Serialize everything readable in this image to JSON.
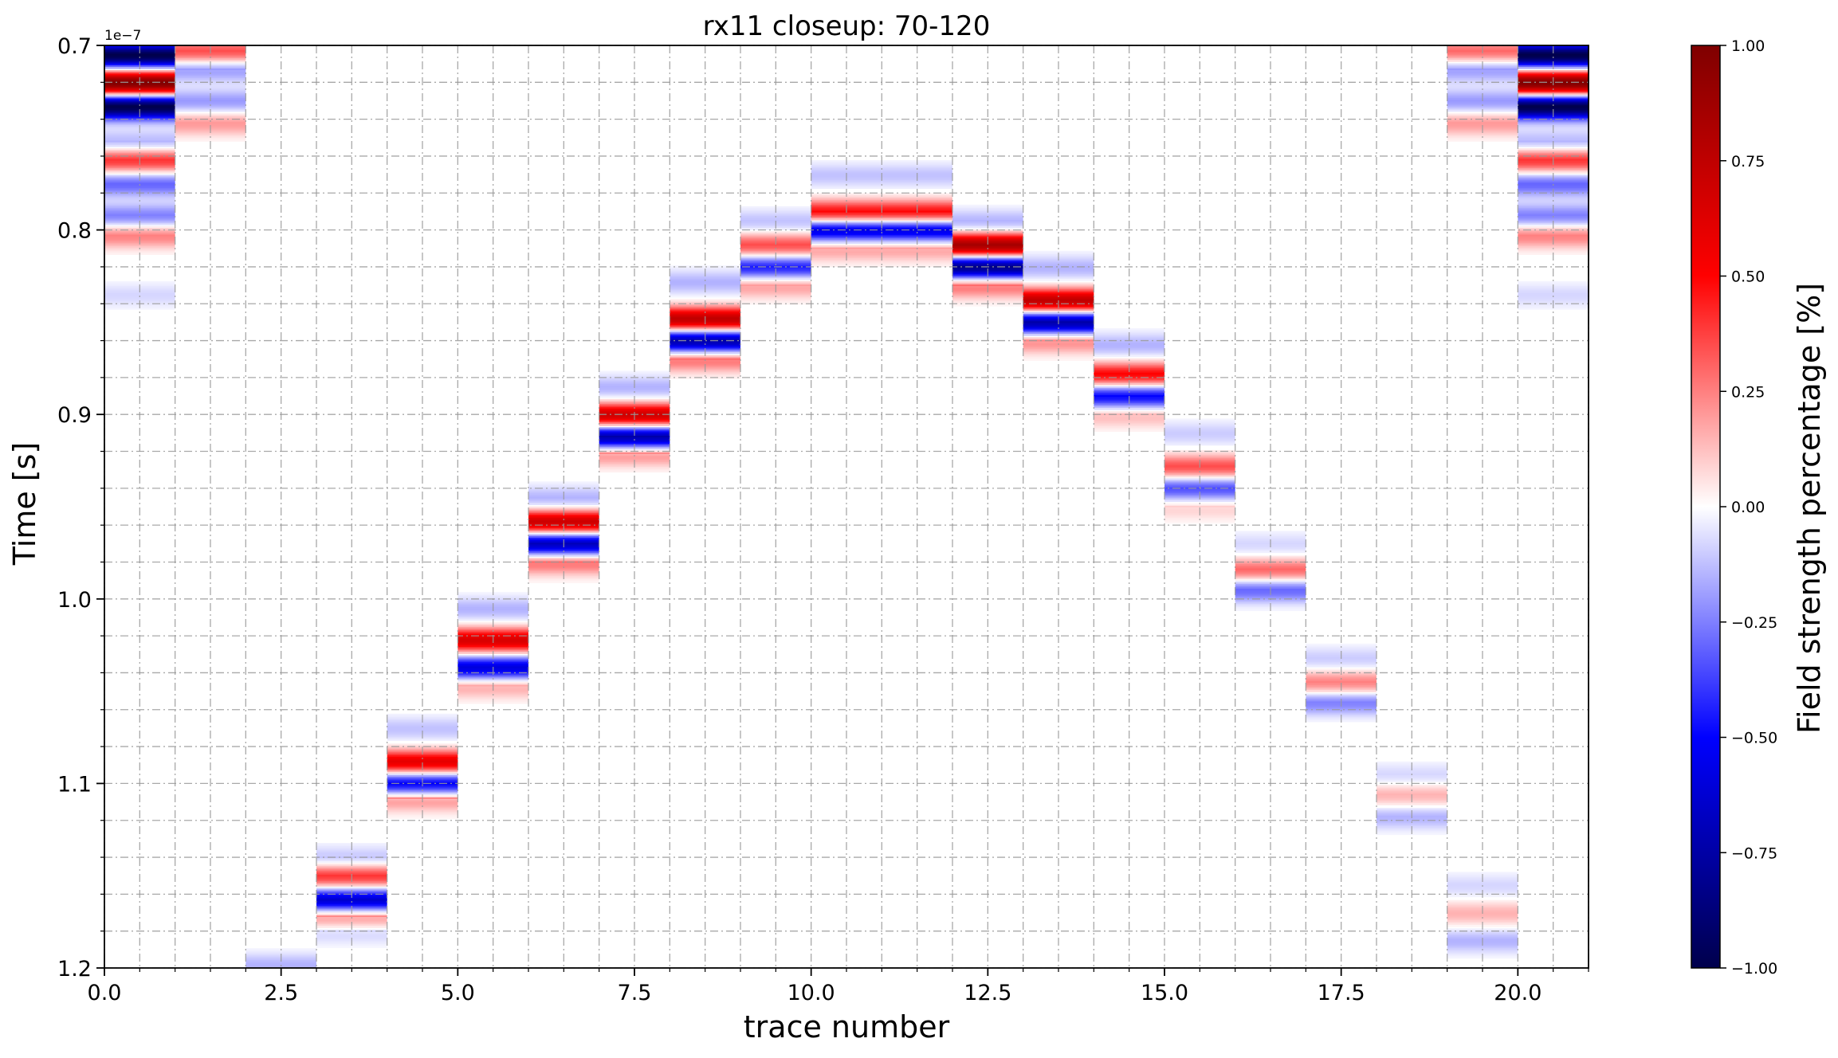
{
  "chart_data": {
    "type": "heatmap",
    "title": "rx11 closeup: 70-120",
    "xlabel": "trace number",
    "ylabel": "Time [s]",
    "y_offset_label": "1e−7",
    "xlim": [
      0.0,
      21.0
    ],
    "ylim": [
      1.2,
      0.7
    ],
    "y_scale_factor": 1e-07,
    "y_inverted": true,
    "x_ticks": [
      0.0,
      2.5,
      5.0,
      7.5,
      10.0,
      12.5,
      15.0,
      17.5,
      20.0
    ],
    "x_tick_labels": [
      "0.0",
      "2.5",
      "5.0",
      "7.5",
      "10.0",
      "12.5",
      "15.0",
      "17.5",
      "20.0"
    ],
    "y_ticks": [
      0.7,
      0.8,
      0.9,
      1.0,
      1.1,
      1.2
    ],
    "y_tick_labels": [
      "0.7",
      "0.8",
      "0.9",
      "1.0",
      "1.1",
      "1.2"
    ],
    "grid": "on",
    "colormap": "seismic",
    "colorbar": {
      "label": "Field strength percentage [%]",
      "range": [
        -1.0,
        1.0
      ],
      "ticks": [
        1.0,
        0.75,
        0.5,
        0.25,
        0.0,
        -0.25,
        -0.5,
        -0.75,
        -1.0
      ],
      "tick_labels": [
        "1.00",
        "0.75",
        "0.50",
        "0.25",
        "0.00",
        "−0.25",
        "−0.50",
        "−0.75",
        "−1.00"
      ],
      "colors": [
        "#00004c",
        "#0000ff",
        "#ffffff",
        "#ff0000",
        "#7f0000"
      ]
    },
    "traces": [
      {
        "trace": 0,
        "bands": [
          [
            0.705,
            -1.0
          ],
          [
            0.72,
            1.0
          ],
          [
            0.733,
            -1.0
          ],
          [
            0.752,
            -0.15
          ],
          [
            0.762,
            0.4
          ],
          [
            0.775,
            -0.3
          ],
          [
            0.792,
            -0.25
          ],
          [
            0.803,
            0.25
          ],
          [
            0.835,
            -0.08
          ]
        ]
      },
      {
        "trace": 1,
        "bands": [
          [
            0.703,
            0.35
          ],
          [
            0.713,
            -0.2
          ],
          [
            0.73,
            -0.2
          ],
          [
            0.742,
            0.2
          ]
        ]
      },
      {
        "trace": 2,
        "bands": [
          [
            1.198,
            -0.15
          ]
        ]
      },
      {
        "trace": 3,
        "bands": [
          [
            1.14,
            -0.12
          ],
          [
            1.15,
            0.4
          ],
          [
            1.163,
            -0.65
          ],
          [
            1.172,
            0.25
          ],
          [
            1.18,
            -0.1
          ]
        ]
      },
      {
        "trace": 4,
        "bands": [
          [
            1.07,
            -0.12
          ],
          [
            1.088,
            0.6
          ],
          [
            1.1,
            -0.55
          ],
          [
            1.108,
            0.25
          ]
        ]
      },
      {
        "trace": 5,
        "bands": [
          [
            1.005,
            -0.15
          ],
          [
            1.022,
            0.65
          ],
          [
            1.037,
            -0.6
          ],
          [
            1.047,
            0.18
          ]
        ]
      },
      {
        "trace": 6,
        "bands": [
          [
            0.945,
            -0.15
          ],
          [
            0.958,
            0.7
          ],
          [
            0.97,
            -0.7
          ],
          [
            0.98,
            0.3
          ]
        ]
      },
      {
        "trace": 7,
        "bands": [
          [
            0.885,
            -0.15
          ],
          [
            0.9,
            0.7
          ],
          [
            0.912,
            -0.75
          ],
          [
            0.921,
            0.25
          ]
        ]
      },
      {
        "trace": 8,
        "bands": [
          [
            0.828,
            -0.15
          ],
          [
            0.848,
            0.75
          ],
          [
            0.86,
            -0.75
          ],
          [
            0.87,
            0.3
          ]
        ]
      },
      {
        "trace": 9,
        "bands": [
          [
            0.795,
            -0.12
          ],
          [
            0.808,
            0.35
          ],
          [
            0.82,
            -0.45
          ],
          [
            0.83,
            0.2
          ]
        ]
      },
      {
        "trace": 10,
        "bands": [
          [
            0.77,
            -0.12
          ],
          [
            0.79,
            0.5
          ],
          [
            0.8,
            -0.6
          ],
          [
            0.81,
            0.2
          ]
        ]
      },
      {
        "trace": 11,
        "bands": [
          [
            0.77,
            -0.12
          ],
          [
            0.79,
            0.5
          ],
          [
            0.8,
            -0.6
          ],
          [
            0.81,
            0.2
          ]
        ]
      },
      {
        "trace": 12,
        "bands": [
          [
            0.795,
            -0.15
          ],
          [
            0.808,
            0.85
          ],
          [
            0.82,
            -0.85
          ],
          [
            0.83,
            0.3
          ]
        ]
      },
      {
        "trace": 13,
        "bands": [
          [
            0.82,
            -0.15
          ],
          [
            0.838,
            0.75
          ],
          [
            0.85,
            -0.75
          ],
          [
            0.86,
            0.25
          ]
        ]
      },
      {
        "trace": 14,
        "bands": [
          [
            0.862,
            -0.15
          ],
          [
            0.878,
            0.5
          ],
          [
            0.89,
            -0.5
          ],
          [
            0.9,
            0.15
          ]
        ]
      },
      {
        "trace": 15,
        "bands": [
          [
            0.91,
            -0.1
          ],
          [
            0.928,
            0.35
          ],
          [
            0.94,
            -0.35
          ],
          [
            0.95,
            0.1
          ]
        ]
      },
      {
        "trace": 16,
        "bands": [
          [
            0.97,
            -0.08
          ],
          [
            0.984,
            0.3
          ],
          [
            0.995,
            -0.3
          ]
        ]
      },
      {
        "trace": 17,
        "bands": [
          [
            1.032,
            -0.1
          ],
          [
            1.045,
            0.25
          ],
          [
            1.056,
            -0.25
          ]
        ]
      },
      {
        "trace": 18,
        "bands": [
          [
            1.095,
            -0.08
          ],
          [
            1.106,
            0.15
          ],
          [
            1.118,
            -0.15
          ]
        ]
      },
      {
        "trace": 19,
        "bands": [
          [
            0.703,
            0.3
          ],
          [
            0.713,
            -0.2
          ],
          [
            0.73,
            -0.2
          ],
          [
            0.742,
            0.2
          ],
          [
            1.155,
            -0.08
          ],
          [
            1.17,
            0.15
          ],
          [
            1.185,
            -0.15
          ]
        ]
      },
      {
        "trace": 20,
        "bands": [
          [
            0.705,
            -1.0
          ],
          [
            0.72,
            1.0
          ],
          [
            0.733,
            -1.0
          ],
          [
            0.752,
            -0.15
          ],
          [
            0.762,
            0.4
          ],
          [
            0.775,
            -0.3
          ],
          [
            0.792,
            -0.25
          ],
          [
            0.803,
            0.25
          ],
          [
            0.835,
            -0.08
          ]
        ]
      }
    ]
  }
}
